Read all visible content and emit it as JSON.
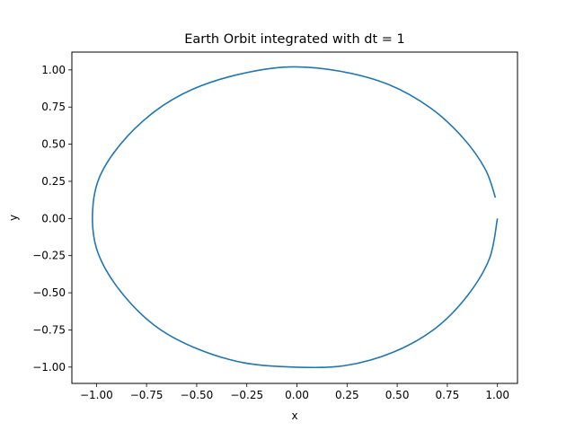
{
  "chart_data": {
    "type": "line",
    "title": "Earth Orbit integrated with dt = 1",
    "xlabel": "x",
    "ylabel": "y",
    "xlim": [
      -1.1225,
      1.1
    ],
    "ylim": [
      -1.11,
      1.12
    ],
    "xticks": [
      -1.0,
      -0.75,
      -0.5,
      -0.25,
      0.0,
      0.25,
      0.5,
      0.75,
      1.0
    ],
    "xtick_labels": [
      "−1.00",
      "−0.75",
      "−0.50",
      "−0.25",
      "0.00",
      "0.25",
      "0.50",
      "0.75",
      "1.00"
    ],
    "yticks": [
      -1.0,
      -0.75,
      -0.5,
      -0.25,
      0.0,
      0.25,
      0.5,
      0.75,
      1.0
    ],
    "ytick_labels": [
      "−1.00",
      "−0.75",
      "−0.50",
      "−0.25",
      "0.00",
      "0.25",
      "0.50",
      "0.75",
      "1.00"
    ],
    "grid": false,
    "series": [
      {
        "color": "#1f77b4",
        "x": [
          1.0,
          0.96,
          0.85,
          0.69,
          0.48,
          0.24,
          -0.02,
          -0.27,
          -0.51,
          -0.71,
          -0.88,
          -0.99,
          -1.02,
          -0.99,
          -0.88,
          -0.71,
          -0.52,
          -0.29,
          -0.04,
          0.22,
          0.46,
          0.67,
          0.83,
          0.94,
          0.99
        ],
        "y": [
          0.0,
          -0.27,
          -0.52,
          -0.74,
          -0.9,
          -0.99,
          -1.0,
          -0.97,
          -0.87,
          -0.72,
          -0.49,
          -0.24,
          0.0,
          0.26,
          0.5,
          0.72,
          0.87,
          0.97,
          1.02,
          0.99,
          0.9,
          0.74,
          0.54,
          0.33,
          0.14
        ]
      }
    ]
  }
}
